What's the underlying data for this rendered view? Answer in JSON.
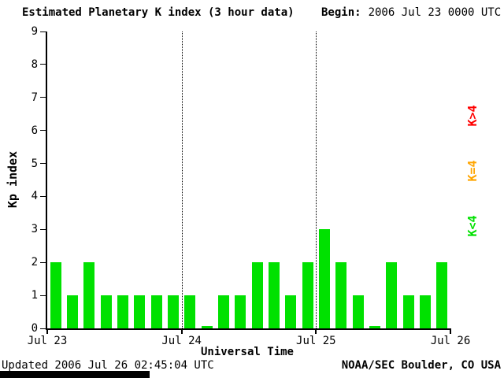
{
  "header": {
    "title": "Estimated Planetary K index (3 hour data)",
    "begin_label": "Begin:",
    "begin_value": "2006 Jul 23 0000 UTC"
  },
  "footer": {
    "updated": "Updated 2006 Jul 26 02:45:04 UTC",
    "credit": "NOAA/SEC Boulder, CO USA"
  },
  "legend": {
    "position": "right",
    "items": [
      {
        "label": "K>4",
        "color": "#ff0000"
      },
      {
        "label": "K=4",
        "color": "#ffa500"
      },
      {
        "label": "K<4",
        "color": "#00e100"
      }
    ]
  },
  "chart_data": {
    "type": "bar",
    "title": "Estimated Planetary K index (3 hour data)",
    "xlabel": "Universal Time",
    "ylabel": "Kp index",
    "ylim": [
      0,
      9
    ],
    "yticks": [
      0,
      1,
      2,
      3,
      4,
      5,
      6,
      7,
      8,
      9
    ],
    "xtick_labels": [
      "Jul 23",
      "Jul 24",
      "Jul 25",
      "Jul 26"
    ],
    "bar_interval_hours": 3,
    "bars_per_day": 8,
    "grid": "dotted vertical lines at day boundaries",
    "legend_position": "right, rotated 90deg",
    "bar_colors_rule": {
      "lt4": "#00e100",
      "eq4": "#ffa500",
      "gt4": "#ff0000"
    },
    "values": [
      2,
      1,
      2,
      1,
      1,
      1,
      1,
      1,
      1,
      0,
      1,
      1,
      2,
      2,
      1,
      2,
      3,
      2,
      1,
      0,
      2,
      1,
      1,
      2
    ]
  }
}
